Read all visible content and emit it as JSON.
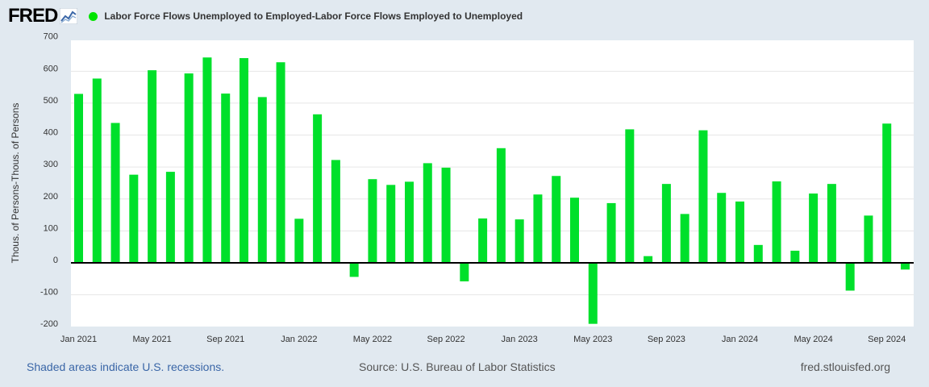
{
  "header": {
    "logo": "FRED",
    "series_label": "Labor Force Flows Unemployed to Employed-Labor Force Flows Employed to Unemployed"
  },
  "footer": {
    "recession_note": "Shaded areas indicate U.S. recessions.",
    "source": "Source: U.S. Bureau of Labor Statistics",
    "site": "fred.stlouisfed.org"
  },
  "colors": {
    "bar": "#00e02b",
    "grid": "#e6e6e6",
    "zero": "#000000"
  },
  "chart_data": {
    "type": "bar",
    "title": "Labor Force Flows Unemployed to Employed-Labor Force Flows Employed to Unemployed",
    "ylabel": "Thous. of Persons-Thous. of Persons",
    "xlabel": "",
    "ylim": [
      -200,
      700
    ],
    "yticks": [
      -200,
      -100,
      0,
      100,
      200,
      300,
      400,
      500,
      600,
      700
    ],
    "xtick_labels": [
      {
        "label": "Jan 2021",
        "index": 0
      },
      {
        "label": "May 2021",
        "index": 4
      },
      {
        "label": "Sep 2021",
        "index": 8
      },
      {
        "label": "Jan 2022",
        "index": 12
      },
      {
        "label": "May 2022",
        "index": 16
      },
      {
        "label": "Sep 2022",
        "index": 20
      },
      {
        "label": "Jan 2023",
        "index": 24
      },
      {
        "label": "May 2023",
        "index": 28
      },
      {
        "label": "Sep 2023",
        "index": 32
      },
      {
        "label": "Jan 2024",
        "index": 36
      },
      {
        "label": "May 2024",
        "index": 40
      },
      {
        "label": "Sep 2024",
        "index": 44
      }
    ],
    "categories": [
      "2021-01",
      "2021-02",
      "2021-03",
      "2021-04",
      "2021-05",
      "2021-06",
      "2021-07",
      "2021-08",
      "2021-09",
      "2021-10",
      "2021-11",
      "2021-12",
      "2022-01",
      "2022-02",
      "2022-03",
      "2022-04",
      "2022-05",
      "2022-06",
      "2022-07",
      "2022-08",
      "2022-09",
      "2022-10",
      "2022-11",
      "2022-12",
      "2023-01",
      "2023-02",
      "2023-03",
      "2023-04",
      "2023-05",
      "2023-06",
      "2023-07",
      "2023-08",
      "2023-09",
      "2023-10",
      "2023-11",
      "2023-12",
      "2024-01",
      "2024-02",
      "2024-03",
      "2024-04",
      "2024-05",
      "2024-06",
      "2024-07",
      "2024-08",
      "2024-09",
      "2024-10"
    ],
    "values": [
      529,
      577,
      438,
      276,
      603,
      285,
      593,
      643,
      530,
      641,
      519,
      628,
      138,
      465,
      322,
      -44,
      262,
      244,
      254,
      312,
      298,
      -58,
      139,
      359,
      136,
      214,
      272,
      204,
      -191,
      187,
      418,
      21,
      247,
      153,
      415,
      219,
      192,
      56,
      255,
      38,
      217,
      247,
      -87,
      148,
      436,
      -21
    ]
  }
}
